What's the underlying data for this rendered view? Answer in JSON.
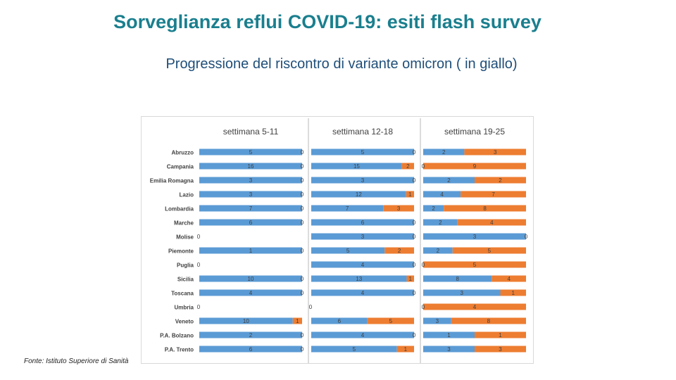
{
  "slide": {
    "title": "Sorveglianza reflui COVID-19: esiti flash survey",
    "subtitle": "Progressione del riscontro di variante omicron ( in giallo)",
    "source": "Fonte: Istituto Superiore di Sanità"
  },
  "colors": {
    "title": "#1a7f8e",
    "subtitle": "#1f4e79",
    "blue_series": "#5b9bd5",
    "orange_series": "#ed7d31"
  },
  "chart_data": [
    {
      "type": "bar",
      "orientation": "horizontal",
      "stacked": true,
      "normalized": true,
      "title": "settimana 5-11",
      "categories": [
        "Abruzzo",
        "Campania",
        "Emilia Romagna",
        "Lazio",
        "Lombardia",
        "Marche",
        "Molise",
        "Piemonte",
        "Puglia",
        "Sicilia",
        "Toscana",
        "Umbria",
        "Veneto",
        "P.A. Bolzano",
        "P.A. Trento"
      ],
      "series": [
        {
          "values": [
            5,
            16,
            3,
            3,
            7,
            6,
            0,
            1,
            0,
            10,
            4,
            0,
            10,
            2,
            6
          ]
        },
        {
          "values": [
            0,
            0,
            0,
            0,
            0,
            0,
            0,
            0,
            0,
            0,
            0,
            0,
            1,
            0,
            0
          ]
        }
      ]
    },
    {
      "type": "bar",
      "orientation": "horizontal",
      "stacked": true,
      "normalized": true,
      "title": "settimana 12-18",
      "categories": [
        "Abruzzo",
        "Campania",
        "Emilia Romagna",
        "Lazio",
        "Lombardia",
        "Marche",
        "Molise",
        "Piemonte",
        "Puglia",
        "Sicilia",
        "Toscana",
        "Umbria",
        "Veneto",
        "P.A. Bolzano",
        "P.A. Trento"
      ],
      "series": [
        {
          "values": [
            5,
            15,
            3,
            12,
            7,
            6,
            3,
            5,
            4,
            13,
            4,
            0,
            6,
            4,
            5
          ]
        },
        {
          "values": [
            0,
            2,
            0,
            1,
            3,
            0,
            0,
            2,
            0,
            1,
            0,
            0,
            5,
            0,
            1
          ]
        }
      ]
    },
    {
      "type": "bar",
      "orientation": "horizontal",
      "stacked": true,
      "normalized": true,
      "title": "settimana 19-25",
      "categories": [
        "Abruzzo",
        "Campania",
        "Emilia Romagna",
        "Lazio",
        "Lombardia",
        "Marche",
        "Molise",
        "Piemonte",
        "Puglia",
        "Sicilia",
        "Toscana",
        "Umbria",
        "Veneto",
        "P.A. Bolzano",
        "P.A. Trento"
      ],
      "series": [
        {
          "values": [
            2,
            0,
            2,
            4,
            2,
            2,
            3,
            2,
            0,
            8,
            3,
            0,
            3,
            1,
            3
          ]
        },
        {
          "values": [
            3,
            9,
            2,
            7,
            8,
            4,
            0,
            5,
            5,
            4,
            1,
            4,
            8,
            1,
            3
          ]
        }
      ]
    }
  ]
}
